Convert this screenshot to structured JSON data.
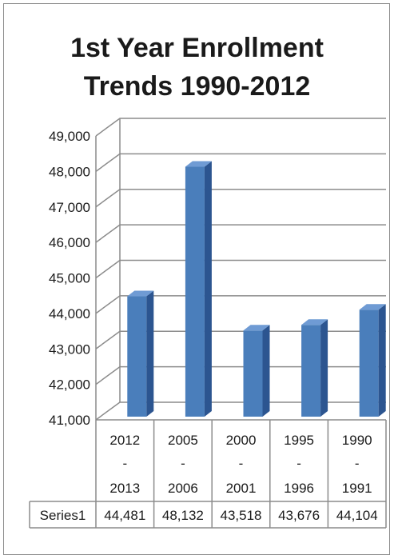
{
  "chart_data": {
    "type": "bar",
    "title_lines": [
      "1st Year Enrollment",
      "Trends 1990-2012"
    ],
    "categories": [
      {
        "top": "2012",
        "mid": "-",
        "bottom": "2013"
      },
      {
        "top": "2005",
        "mid": "-",
        "bottom": "2006"
      },
      {
        "top": "2000",
        "mid": "-",
        "bottom": "2001"
      },
      {
        "top": "1995",
        "mid": "-",
        "bottom": "1996"
      },
      {
        "top": "1990",
        "mid": "-",
        "bottom": "1991"
      }
    ],
    "series": [
      {
        "name": "Series1",
        "values": [
          44481,
          48132,
          43518,
          43676,
          44104
        ],
        "labels": [
          "44,481",
          "48,132",
          "43,518",
          "43,676",
          "44,104"
        ]
      }
    ],
    "yticks": [
      "41,000",
      "42,000",
      "43,000",
      "44,000",
      "45,000",
      "46,000",
      "47,000",
      "48,000",
      "49,000"
    ],
    "ylim": [
      41000,
      49000
    ],
    "grid": true,
    "legend": "data table below chart",
    "bar_color": "#4a7ebb"
  }
}
